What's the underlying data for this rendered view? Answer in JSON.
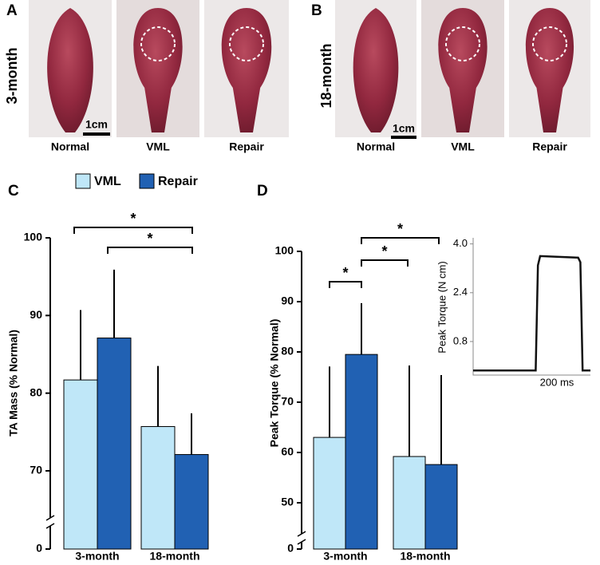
{
  "photo_panels": [
    {
      "label": "A",
      "row_label": "3-month",
      "captions": [
        "Normal",
        "VML",
        "Repair"
      ],
      "scale": "1cm"
    },
    {
      "label": "B",
      "row_label": "18-month",
      "captions": [
        "Normal",
        "VML",
        "Repair"
      ],
      "scale": "1cm"
    }
  ],
  "chart_data": [
    {
      "type": "bar",
      "panel_label": "C",
      "ylabel": "TA Mass (% Normal)",
      "categories": [
        "3-month",
        "18-month"
      ],
      "series": [
        {
          "name": "VML",
          "color": "#bfe7f8",
          "values": [
            81.7,
            75.7
          ],
          "errors": [
            9.0,
            7.8
          ]
        },
        {
          "name": "Repair",
          "color": "#2161b3",
          "values": [
            87.1,
            72.1
          ],
          "errors": [
            8.8,
            5.3
          ]
        }
      ],
      "ylim": [
        0,
        100
      ],
      "yticks": [
        0,
        70,
        80,
        90,
        100
      ],
      "broken_axis": true,
      "annotations": [
        "*",
        "*"
      ]
    },
    {
      "type": "bar",
      "panel_label": "D",
      "ylabel": "Peak Torque (% Normal)",
      "categories": [
        "3-month",
        "18-month"
      ],
      "series": [
        {
          "name": "VML",
          "color": "#bfe7f8",
          "values": [
            63.0,
            59.2
          ],
          "errors": [
            14.1,
            18.1
          ]
        },
        {
          "name": "Repair",
          "color": "#2161b3",
          "values": [
            79.5,
            57.6
          ],
          "errors": [
            10.2,
            17.8
          ]
        }
      ],
      "ylim": [
        0,
        100
      ],
      "yticks": [
        0,
        50,
        60,
        70,
        80,
        90,
        100
      ],
      "broken_axis": true,
      "annotations": [
        "*",
        "*",
        "*"
      ]
    },
    {
      "type": "line",
      "ylabel": "Peak Torque (N cm)",
      "xlabel": "200 ms",
      "x": [
        0,
        280,
        290,
        300,
        470,
        480,
        490,
        525
      ],
      "series": [
        {
          "color": "#111111",
          "values": [
            -0.15,
            -0.15,
            3.3,
            3.6,
            3.55,
            3.4,
            -0.15,
            -0.15
          ]
        }
      ],
      "xlim": [
        0,
        525
      ],
      "ylim": [
        -0.3,
        4.2
      ],
      "yticks": [
        0.8,
        2.4,
        {
          "value": 4,
          "label": "4.0"
        }
      ]
    }
  ]
}
